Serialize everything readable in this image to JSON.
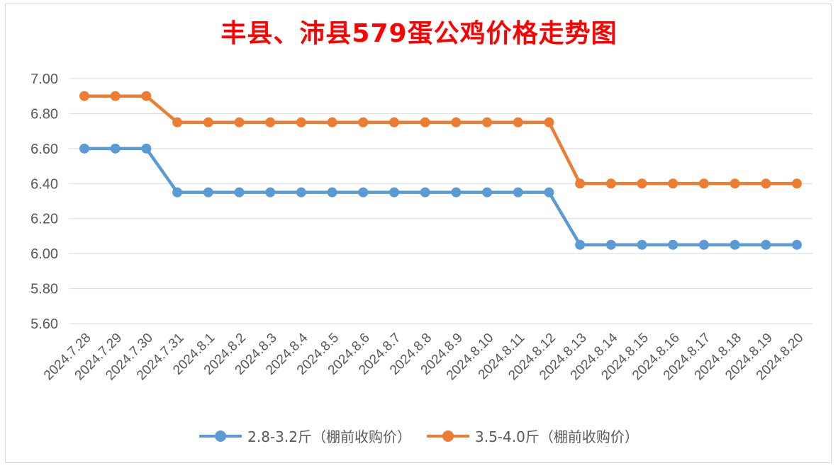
{
  "chart_data": {
    "type": "line",
    "title": "丰县、沛县579蛋公鸡价格走势图",
    "categories": [
      "2024.7.28",
      "2024.7.29",
      "2024.7.30",
      "2024.7.31",
      "2024.8.1",
      "2024.8.2",
      "2024.8.3",
      "2024.8.4",
      "2024.8.5",
      "2024.8.6",
      "2024.8.7",
      "2024.8.8",
      "2024.8.9",
      "2024.8.10",
      "2024.8.11",
      "2024.8.12",
      "2024.8.13",
      "2024.8.14",
      "2024.8.15",
      "2024.8.16",
      "2024.8.17",
      "2024.8.18",
      "2024.8.19",
      "2024.8.20"
    ],
    "series": [
      {
        "name": "2.8-3.2斤（棚前收购价）",
        "color": "#5b9bd5",
        "values": [
          6.6,
          6.6,
          6.6,
          6.35,
          6.35,
          6.35,
          6.35,
          6.35,
          6.35,
          6.35,
          6.35,
          6.35,
          6.35,
          6.35,
          6.35,
          6.35,
          6.05,
          6.05,
          6.05,
          6.05,
          6.05,
          6.05,
          6.05,
          6.05
        ]
      },
      {
        "name": "3.5-4.0斤（棚前收购价）",
        "color": "#ed7d31",
        "values": [
          6.9,
          6.9,
          6.9,
          6.75,
          6.75,
          6.75,
          6.75,
          6.75,
          6.75,
          6.75,
          6.75,
          6.75,
          6.75,
          6.75,
          6.75,
          6.75,
          6.4,
          6.4,
          6.4,
          6.4,
          6.4,
          6.4,
          6.4,
          6.4
        ]
      }
    ],
    "yticks": [
      "5.60",
      "5.80",
      "6.00",
      "6.20",
      "6.40",
      "6.60",
      "6.80",
      "7.00"
    ],
    "ylim": [
      5.6,
      7.0
    ],
    "grid": true,
    "legend_position": "bottom",
    "title_color": "#ff0000"
  }
}
